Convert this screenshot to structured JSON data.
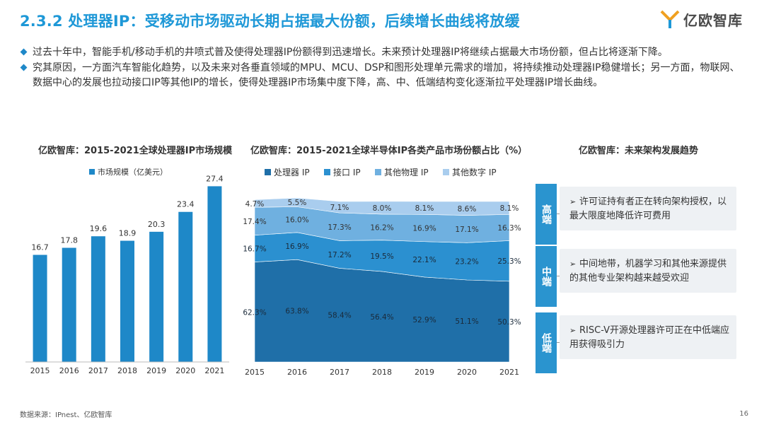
{
  "header": {
    "title": "2.3.2 处理器IP：受移动市场驱动长期占据最大份额，后续增长曲线将放缓",
    "logo_text": "亿欧智库"
  },
  "bullets": [
    "过去十年中，智能手机/移动手机的井喷式普及使得处理器IP份额得到迅速增长。未来预计处理器IP将继续占据最大市场份额，但占比将逐渐下降。",
    "究其原因，一方面汽车智能化趋势，以及未来对各垂直领域的MPU、MCU、DSP和图形处理单元需求的增加，将持续推动处理器IP稳健增长；另一方面，物联网、数据中心的发展也拉动接口IP等其他IP的增长，使得处理器IP市场集中度下降，高、中、低端结构变化逐渐拉平处理器IP增长曲线。"
  ],
  "chart_data": [
    {
      "type": "bar",
      "title": "亿欧智库：2015-2021全球处理器IP市场规模",
      "legend": "市场规模（亿美元）",
      "categories": [
        "2015",
        "2016",
        "2017",
        "2018",
        "2019",
        "2020",
        "2021"
      ],
      "values": [
        16.7,
        17.8,
        19.6,
        18.9,
        20.3,
        23.4,
        27.4
      ],
      "ylim": [
        0,
        28
      ],
      "color": "#1e88c8"
    },
    {
      "type": "area",
      "stacked": true,
      "title": "亿欧智库：2015-2021全球半导体IP各类产品市场份额占比（%）",
      "categories": [
        "2015",
        "2016",
        "2017",
        "2018",
        "2019",
        "2020",
        "2021"
      ],
      "series": [
        {
          "name": "处理器 IP",
          "color": "#1f6fa8",
          "values": [
            62.3,
            63.8,
            58.4,
            56.4,
            52.9,
            51.1,
            50.3
          ]
        },
        {
          "name": "接口 IP",
          "color": "#2b90d0",
          "values": [
            16.7,
            16.9,
            17.2,
            19.5,
            22.1,
            23.2,
            25.3
          ]
        },
        {
          "name": "其他物理 IP",
          "color": "#6fb0e0",
          "values": [
            17.4,
            16.0,
            17.3,
            16.2,
            16.9,
            17.1,
            16.3
          ]
        },
        {
          "name": "其他数字 IP",
          "color": "#a9cdee",
          "values": [
            4.7,
            5.5,
            7.1,
            8.0,
            8.1,
            8.6,
            8.1
          ]
        }
      ],
      "ylim": [
        0,
        100
      ]
    }
  ],
  "trend": {
    "title": "亿欧智库：未来架构发展趋势",
    "rows": [
      {
        "tag": "高端",
        "text": "许可证持有者正在转向架构授权，以最大限度地降低许可费用",
        "arrow": "➢"
      },
      {
        "tag": "中端",
        "text": "中间地带，机器学习和其他来源提供的其他专业架构越来越受欢迎",
        "arrow": "➢"
      },
      {
        "tag": "低端",
        "text": "RISC-V开源处理器许可正在中低端应用获得吸引力",
        "arrow": "➢"
      }
    ]
  },
  "footer": {
    "source": "数据来源：IPnest、亿欧智库",
    "page": "16"
  }
}
